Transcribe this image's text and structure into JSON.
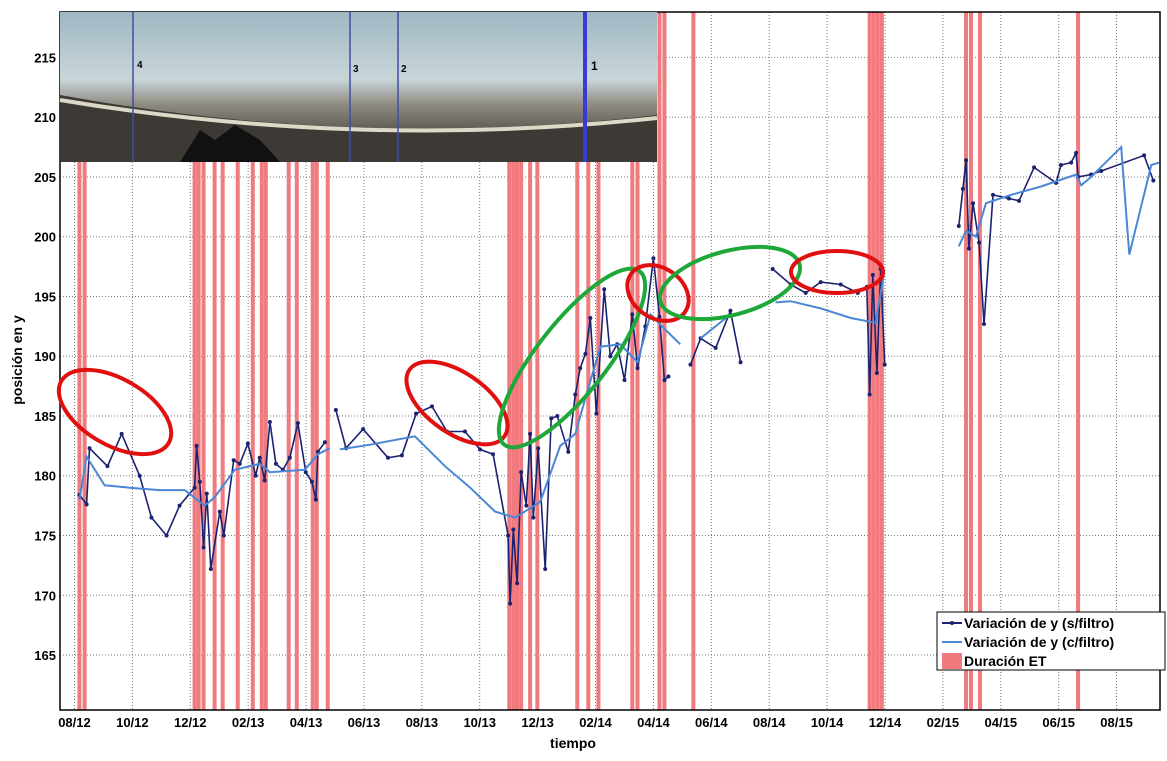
{
  "chart_data": {
    "type": "line",
    "x_label": "tiempo",
    "y_label": "posición en y",
    "xlim": [
      -0.5,
      37.5
    ],
    "ylim": [
      160.4,
      218.8
    ],
    "xticks": [
      {
        "value": 0,
        "label": "08/12"
      },
      {
        "value": 2,
        "label": "10/12"
      },
      {
        "value": 4,
        "label": "12/12"
      },
      {
        "value": 6,
        "label": "02/13"
      },
      {
        "value": 8,
        "label": "04/13"
      },
      {
        "value": 10,
        "label": "06/13"
      },
      {
        "value": 12,
        "label": "08/13"
      },
      {
        "value": 14,
        "label": "10/13"
      },
      {
        "value": 16,
        "label": "12/13"
      },
      {
        "value": 18,
        "label": "02/14"
      },
      {
        "value": 20,
        "label": "04/14"
      },
      {
        "value": 22,
        "label": "06/14"
      },
      {
        "value": 24,
        "label": "08/14"
      },
      {
        "value": 26,
        "label": "10/14"
      },
      {
        "value": 28,
        "label": "12/14"
      },
      {
        "value": 30,
        "label": "02/15"
      },
      {
        "value": 32,
        "label": "04/15"
      },
      {
        "value": 34,
        "label": "06/15"
      },
      {
        "value": 36,
        "label": "08/15"
      }
    ],
    "yticks": [
      165,
      170,
      175,
      180,
      185,
      190,
      195,
      200,
      205,
      210,
      215
    ],
    "grid": true,
    "legend": "lower right",
    "annotations": [
      "4",
      "3",
      "2",
      "1"
    ],
    "series": [
      {
        "name": "Variación de y (s/filtro)",
        "color": "#1b2370",
        "markers": true,
        "x": [
          0.17,
          0.42,
          0.52,
          1.14,
          1.63,
          2.25,
          2.66,
          3.18,
          3.63,
          4.15,
          4.22,
          4.33,
          4.46,
          4.57,
          4.71,
          5.02,
          5.16,
          5.5,
          5.71,
          5.99,
          6.26,
          6.4,
          6.57,
          6.75,
          6.96,
          7.2,
          7.44,
          7.72,
          7.99,
          8.2,
          8.34,
          8.41,
          8.65,
          null,
          9.03,
          9.38,
          9.97,
          10.83,
          11.31,
          11.8,
          12.35,
          12.87,
          13.49,
          14.01,
          14.46,
          14.98,
          15.05,
          15.16,
          15.29,
          15.43,
          15.61,
          15.74,
          15.85,
          16.02,
          16.26,
          16.47,
          16.68,
          17.06,
          17.3,
          17.47,
          17.65,
          17.82,
          18.03,
          18.3,
          18.51,
          18.75,
          19.0,
          19.27,
          19.45,
          19.72,
          20.0,
          20.21,
          20.38,
          20.52,
          null,
          21.28,
          21.63,
          22.15,
          22.66,
          23.01,
          null,
          24.12,
          24.74,
          25.26,
          25.78,
          26.47,
          27.06,
          27.37,
          27.47,
          27.58,
          27.72,
          27.85,
          27.99,
          null,
          30.55,
          30.69,
          30.8,
          30.9,
          31.04,
          31.25,
          31.42,
          31.73,
          32.28,
          32.63,
          33.15,
          33.91,
          34.08,
          34.43,
          34.6,
          34.67,
          35.12,
          35.47,
          36.95,
          37.27
        ],
        "values": [
          178.4,
          177.6,
          182.3,
          180.8,
          183.5,
          180.0,
          176.5,
          175.0,
          177.5,
          179.0,
          182.5,
          179.5,
          174.0,
          178.5,
          172.2,
          177.0,
          175.0,
          181.3,
          181.0,
          182.7,
          180.0,
          181.5,
          179.6,
          184.5,
          181.0,
          180.5,
          181.5,
          184.4,
          180.3,
          179.5,
          178.0,
          182.0,
          182.8,
          null,
          185.5,
          182.3,
          183.9,
          181.5,
          181.7,
          185.2,
          185.8,
          183.7,
          183.7,
          182.2,
          181.8,
          175.0,
          169.3,
          175.5,
          171.0,
          180.3,
          177.5,
          183.5,
          176.5,
          182.3,
          172.2,
          184.8,
          185.0,
          182.0,
          186.8,
          189.0,
          190.2,
          193.2,
          185.2,
          195.6,
          190.0,
          191.0,
          188.0,
          193.5,
          189.0,
          192.5,
          198.2,
          193.3,
          188.0,
          188.3,
          null,
          189.3,
          191.5,
          190.7,
          193.8,
          189.5,
          null,
          197.3,
          196.0,
          195.3,
          196.2,
          196.0,
          195.3,
          195.8,
          186.8,
          196.8,
          188.6,
          197.3,
          189.3,
          null,
          200.9,
          204.0,
          206.4,
          199.0,
          202.8,
          199.5,
          192.7,
          203.5,
          203.2,
          203.0,
          205.8,
          204.5,
          206.0,
          206.2,
          207.0,
          205.0,
          205.2,
          205.5,
          206.8,
          204.7
        ]
      },
      {
        "name": "Variación de y (c/filtro)",
        "color": "#4a88d6",
        "markers": false,
        "x": [
          0.17,
          0.42,
          1.04,
          1.9,
          2.94,
          3.81,
          4.5,
          4.84,
          5.54,
          6.4,
          6.75,
          7.96,
          8.41,
          8.82,
          null,
          9.17,
          10.21,
          11.76,
          12.8,
          13.67,
          14.53,
          15.22,
          16.09,
          16.78,
          17.3,
          17.65,
          18.17,
          18.86,
          19.45,
          19.9,
          20.42,
          20.93,
          null,
          21.63,
          22.66,
          null,
          24.22,
          24.74,
          25.78,
          26.82,
          27.68,
          27.96,
          null,
          30.55,
          30.8,
          31.14,
          31.49,
          32.35,
          33.39,
          34.6,
          34.78,
          35.12,
          36.16,
          36.44,
          37.2,
          37.47
        ],
        "values": [
          178.0,
          181.6,
          179.2,
          179.0,
          178.8,
          178.8,
          177.5,
          178.2,
          180.5,
          181.0,
          180.3,
          180.5,
          181.8,
          182.3,
          null,
          182.2,
          182.6,
          183.3,
          180.8,
          179.0,
          177.0,
          176.5,
          177.8,
          182.5,
          183.5,
          186.5,
          190.8,
          191.0,
          189.5,
          193.5,
          192.2,
          191.0,
          null,
          191.5,
          193.5,
          null,
          194.5,
          194.6,
          194.0,
          193.2,
          192.8,
          196.8,
          null,
          199.2,
          200.5,
          200.0,
          202.8,
          203.5,
          204.2,
          205.2,
          204.3,
          205.0,
          207.5,
          198.5,
          206.0,
          206.2
        ]
      }
    ],
    "bands": {
      "name": "Duración ET",
      "color": "#f07a7e",
      "x": [
        0.17,
        0.35,
        4.15,
        4.29,
        4.46,
        4.84,
        5.12,
        5.64,
        6.16,
        6.47,
        6.61,
        7.4,
        7.68,
        8.23,
        8.37,
        8.75,
        15.02,
        15.16,
        15.29,
        15.43,
        15.74,
        15.99,
        17.37,
        17.75,
        18.1,
        19.27,
        19.45,
        20.21,
        20.38,
        21.38,
        27.47,
        27.61,
        27.75,
        27.89,
        30.8,
        30.97,
        31.28,
        34.67
      ]
    }
  }
}
